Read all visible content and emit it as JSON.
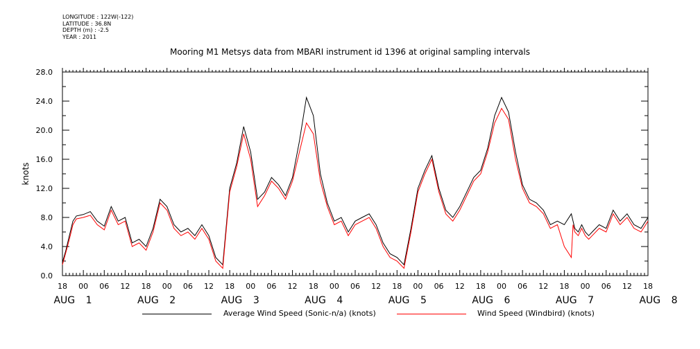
{
  "header": {
    "longitude": "LONGITUDE : 122W(-122)",
    "latitude": "LATITUDE : 36.8N",
    "depth": "DEPTH (m) : -2.5",
    "year": "YEAR : 2011"
  },
  "chart_data": {
    "type": "line",
    "title": "Mooring M1 Metsys data from MBARI instrument id 1396 at original sampling intervals",
    "xlabel": "",
    "ylabel": "knots",
    "ylim": [
      0,
      28
    ],
    "y_ticks": [
      "0.0",
      "4.0",
      "8.0",
      "12.0",
      "16.0",
      "20.0",
      "24.0",
      "28.0"
    ],
    "x_unit": "hours since Aug 1 00:00 (2011)",
    "xlim": [
      -6,
      162
    ],
    "x_tick_labels": [
      "18",
      "00",
      "06",
      "12",
      "18",
      "00",
      "06",
      "12",
      "18",
      "00",
      "06",
      "12",
      "18",
      "00",
      "06",
      "12",
      "18",
      "00",
      "06",
      "12",
      "18",
      "00",
      "06",
      "12",
      "18",
      "00",
      "06",
      "12",
      "18"
    ],
    "date_labels": [
      "AUG",
      "1",
      "AUG",
      "2",
      "AUG",
      "3",
      "AUG",
      "4",
      "AUG",
      "5",
      "AUG",
      "6",
      "AUG",
      "7",
      "AUG",
      "8"
    ],
    "grid": false,
    "series": [
      {
        "name": "Average Wind Speed (Sonic-n/a) (knots)",
        "color": "#000000",
        "x": [
          -6,
          -5,
          -4,
          -3,
          -2,
          0,
          2,
          4,
          6,
          8,
          10,
          12,
          14,
          16,
          18,
          20,
          22,
          24,
          26,
          28,
          30,
          32,
          34,
          36,
          38,
          40,
          42,
          44,
          46,
          48,
          50,
          52,
          54,
          56,
          58,
          60,
          62,
          64,
          66,
          68,
          70,
          72,
          74,
          76,
          78,
          80,
          82,
          84,
          86,
          88,
          90,
          92,
          94,
          96,
          98,
          100,
          102,
          104,
          106,
          108,
          110,
          112,
          114,
          116,
          118,
          120,
          122,
          124,
          126,
          128,
          130,
          132,
          134,
          136,
          138,
          140,
          140.5,
          141,
          142,
          143,
          144,
          145,
          146,
          148,
          150,
          152,
          154,
          156,
          158,
          160,
          162
        ],
        "y": [
          1.8,
          3.5,
          5.5,
          7.5,
          8.2,
          8.4,
          8.8,
          7.5,
          6.8,
          9.5,
          7.5,
          8.0,
          4.5,
          5.0,
          4.0,
          6.5,
          10.5,
          9.5,
          7.0,
          6.0,
          6.5,
          5.5,
          7.0,
          5.5,
          2.5,
          1.5,
          12.0,
          15.5,
          20.5,
          17.0,
          10.5,
          11.5,
          13.5,
          12.5,
          11.0,
          13.5,
          18.5,
          24.5,
          22.0,
          14.0,
          10.0,
          7.5,
          8.0,
          6.0,
          7.5,
          8.0,
          8.5,
          7.0,
          4.5,
          3.0,
          2.5,
          1.5,
          6.5,
          12.0,
          14.5,
          16.5,
          12.0,
          9.0,
          8.0,
          9.5,
          11.5,
          13.5,
          14.5,
          17.5,
          22.0,
          24.5,
          22.5,
          17.0,
          12.5,
          10.5,
          10.0,
          9.0,
          7.0,
          7.5,
          7.0,
          8.5,
          7.5,
          6.5,
          6.0,
          7.0,
          6.0,
          5.5,
          6.0,
          7.0,
          6.5,
          9.0,
          7.5,
          8.5,
          7.0,
          6.5,
          8.0
        ]
      },
      {
        "name": "Wind Speed (Windbird) (knots)",
        "color": "#ff0000",
        "x": [
          -6,
          -5,
          -4,
          -3,
          -2,
          0,
          2,
          4,
          6,
          8,
          10,
          12,
          14,
          16,
          18,
          20,
          22,
          24,
          26,
          28,
          30,
          32,
          34,
          36,
          38,
          40,
          42,
          44,
          46,
          48,
          50,
          52,
          54,
          56,
          58,
          60,
          62,
          64,
          66,
          68,
          70,
          72,
          74,
          76,
          78,
          80,
          82,
          84,
          86,
          88,
          90,
          92,
          94,
          96,
          98,
          100,
          102,
          104,
          106,
          108,
          110,
          112,
          114,
          116,
          118,
          120,
          122,
          124,
          126,
          128,
          130,
          132,
          134,
          136,
          138,
          140,
          140.5,
          141,
          142,
          143,
          144,
          145,
          146,
          148,
          150,
          152,
          154,
          156,
          158,
          160,
          162
        ],
        "y": [
          1.5,
          3.2,
          5.0,
          7.0,
          7.8,
          8.0,
          8.3,
          7.0,
          6.3,
          9.0,
          7.0,
          7.5,
          4.0,
          4.5,
          3.5,
          6.0,
          10.0,
          9.0,
          6.5,
          5.5,
          6.0,
          5.0,
          6.5,
          5.0,
          2.0,
          1.0,
          11.5,
          15.0,
          19.5,
          16.0,
          9.5,
          11.0,
          13.0,
          12.0,
          10.5,
          13.0,
          17.0,
          21.0,
          19.5,
          13.0,
          9.5,
          7.0,
          7.5,
          5.5,
          7.0,
          7.5,
          8.0,
          6.5,
          4.0,
          2.5,
          2.0,
          1.0,
          6.0,
          11.5,
          14.0,
          16.0,
          11.5,
          8.5,
          7.5,
          9.0,
          11.0,
          13.0,
          14.0,
          17.0,
          21.0,
          23.0,
          21.5,
          16.0,
          12.0,
          10.0,
          9.5,
          8.5,
          6.5,
          7.0,
          4.0,
          2.5,
          7.0,
          6.0,
          5.5,
          6.5,
          5.5,
          5.0,
          5.5,
          6.5,
          6.0,
          8.5,
          7.0,
          8.0,
          6.5,
          6.0,
          7.5
        ]
      }
    ],
    "legend_position": "bottom"
  }
}
